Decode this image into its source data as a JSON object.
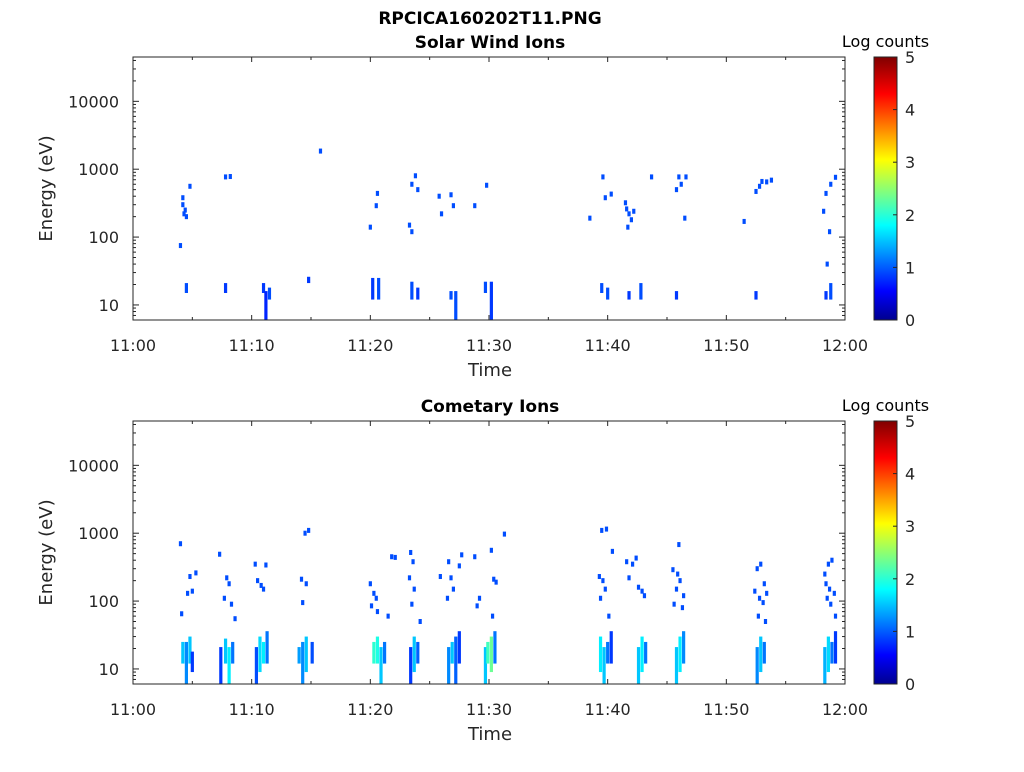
{
  "figure_title": "RPCICA160202T11.PNG",
  "colormap": "jet",
  "chart_data": [
    {
      "type": "heatmap",
      "title": "Solar Wind Ions",
      "xlabel": "Time",
      "ylabel": "Energy (eV)",
      "y_scale": "log",
      "ylim": [
        6,
        45000
      ],
      "x_ticks": [
        "11:00",
        "11:10",
        "11:20",
        "11:30",
        "11:40",
        "11:50",
        "12:00"
      ],
      "y_ticks": [
        "10",
        "100",
        "1000",
        "10000"
      ],
      "y_tick_values": [
        10,
        100,
        1000,
        10000
      ],
      "colorbar": {
        "label": "Log counts",
        "ticks": [
          "0",
          "1",
          "2",
          "3",
          "4",
          "5"
        ],
        "range": [
          0,
          5
        ]
      },
      "cells": [
        [
          4.2,
          300,
          1
        ],
        [
          4.3,
          220,
          1
        ],
        [
          4.4,
          250,
          1
        ],
        [
          4.5,
          200,
          1
        ],
        [
          4.2,
          380,
          1
        ],
        [
          4.0,
          75,
          1
        ],
        [
          4.8,
          560,
          1
        ],
        [
          7.8,
          770,
          1
        ],
        [
          8.2,
          780,
          1
        ],
        [
          15.8,
          1850,
          1
        ],
        [
          20.0,
          140,
          1
        ],
        [
          20.6,
          440,
          1
        ],
        [
          20.5,
          290,
          1
        ],
        [
          23.5,
          600,
          1
        ],
        [
          23.8,
          800,
          1
        ],
        [
          24.0,
          500,
          1
        ],
        [
          23.3,
          150,
          1
        ],
        [
          23.5,
          120,
          1
        ],
        [
          25.8,
          400,
          1
        ],
        [
          26.0,
          220,
          1
        ],
        [
          26.8,
          420,
          1
        ],
        [
          27.0,
          290,
          1
        ],
        [
          28.8,
          290,
          1
        ],
        [
          29.8,
          580,
          1
        ],
        [
          38.5,
          190,
          1
        ],
        [
          39.6,
          770,
          1
        ],
        [
          39.8,
          380,
          1
        ],
        [
          40.3,
          430,
          1
        ],
        [
          41.5,
          320,
          1
        ],
        [
          41.6,
          260,
          1
        ],
        [
          41.8,
          220,
          1
        ],
        [
          42.0,
          180,
          1
        ],
        [
          41.7,
          140,
          1
        ],
        [
          42.2,
          240,
          1
        ],
        [
          43.7,
          770,
          1
        ],
        [
          45.8,
          500,
          1
        ],
        [
          46.0,
          770,
          1
        ],
        [
          46.2,
          600,
          1
        ],
        [
          46.6,
          770,
          1
        ],
        [
          46.5,
          190,
          1
        ],
        [
          51.5,
          170,
          1
        ],
        [
          52.5,
          470,
          1
        ],
        [
          52.8,
          560,
          1
        ],
        [
          53.0,
          660,
          1
        ],
        [
          53.4,
          650,
          1
        ],
        [
          53.8,
          690,
          1
        ],
        [
          58.2,
          240,
          1
        ],
        [
          58.4,
          440,
          1
        ],
        [
          58.7,
          120,
          1
        ],
        [
          58.5,
          40,
          1
        ],
        [
          58.8,
          600,
          1
        ],
        [
          59.2,
          760,
          1
        ]
      ],
      "columns": [
        [
          4.5,
          15,
          21,
          1
        ],
        [
          7.8,
          15,
          21,
          0.9
        ],
        [
          11.0,
          15,
          21,
          0.9
        ],
        [
          11.2,
          6,
          16,
          0.8
        ],
        [
          11.5,
          12,
          18,
          1
        ],
        [
          14.8,
          21,
          26,
          0.9
        ],
        [
          20.2,
          12,
          25,
          0.9
        ],
        [
          20.7,
          12,
          25,
          1
        ],
        [
          23.5,
          12,
          22,
          1
        ],
        [
          24.0,
          12,
          18,
          0.9
        ],
        [
          26.8,
          12,
          16,
          1
        ],
        [
          27.2,
          6,
          16,
          1
        ],
        [
          29.7,
          15,
          22,
          1
        ],
        [
          30.2,
          6,
          22,
          0.9
        ],
        [
          39.5,
          15,
          21,
          1
        ],
        [
          40.0,
          12,
          18,
          1
        ],
        [
          41.8,
          12,
          16,
          0.9
        ],
        [
          42.8,
          12,
          21,
          1
        ],
        [
          45.8,
          12,
          16,
          0.9
        ],
        [
          52.5,
          12,
          16,
          0.9
        ],
        [
          58.4,
          12,
          16,
          0.9
        ],
        [
          58.8,
          12,
          21,
          1
        ]
      ]
    },
    {
      "type": "heatmap",
      "title": "Cometary Ions",
      "xlabel": "Time",
      "ylabel": "Energy (eV)",
      "y_scale": "log",
      "ylim": [
        6,
        45000
      ],
      "x_ticks": [
        "11:00",
        "11:10",
        "11:20",
        "11:30",
        "11:40",
        "11:50",
        "12:00"
      ],
      "y_ticks": [
        "10",
        "100",
        "1000",
        "10000"
      ],
      "y_tick_values": [
        10,
        100,
        1000,
        10000
      ],
      "colorbar": {
        "label": "Log counts",
        "ticks": [
          "0",
          "1",
          "2",
          "3",
          "4",
          "5"
        ],
        "range": [
          0,
          5
        ]
      },
      "cells": [
        [
          4.0,
          700,
          1
        ],
        [
          4.1,
          65,
          1
        ],
        [
          4.6,
          130,
          1
        ],
        [
          5.0,
          140,
          1
        ],
        [
          4.8,
          230,
          1
        ],
        [
          5.3,
          260,
          1
        ],
        [
          7.3,
          490,
          1
        ],
        [
          7.9,
          220,
          1
        ],
        [
          8.1,
          180,
          1
        ],
        [
          7.7,
          110,
          1
        ],
        [
          8.3,
          90,
          1
        ],
        [
          8.6,
          55,
          1
        ],
        [
          10.3,
          350,
          1
        ],
        [
          10.5,
          200,
          1
        ],
        [
          10.8,
          170,
          1
        ],
        [
          11.2,
          340,
          1
        ],
        [
          11.0,
          150,
          1
        ],
        [
          14.5,
          1000,
          1
        ],
        [
          14.8,
          1100,
          1
        ],
        [
          14.2,
          210,
          1
        ],
        [
          14.6,
          180,
          1
        ],
        [
          14.3,
          95,
          1
        ],
        [
          20.0,
          180,
          1
        ],
        [
          20.3,
          130,
          1
        ],
        [
          20.5,
          110,
          1
        ],
        [
          20.1,
          85,
          1
        ],
        [
          20.6,
          70,
          1
        ],
        [
          21.5,
          60,
          1
        ],
        [
          21.8,
          450,
          1
        ],
        [
          22.1,
          440,
          1
        ],
        [
          23.4,
          520,
          1
        ],
        [
          23.6,
          380,
          1
        ],
        [
          23.3,
          220,
          1
        ],
        [
          23.7,
          150,
          1
        ],
        [
          23.5,
          90,
          1
        ],
        [
          24.2,
          50,
          1
        ],
        [
          25.9,
          230,
          1
        ],
        [
          26.6,
          380,
          1
        ],
        [
          26.8,
          220,
          1
        ],
        [
          27.0,
          150,
          1
        ],
        [
          26.5,
          110,
          1
        ],
        [
          27.5,
          330,
          1
        ],
        [
          27.7,
          480,
          1
        ],
        [
          28.8,
          450,
          1
        ],
        [
          29.2,
          110,
          1
        ],
        [
          29.0,
          85,
          1
        ],
        [
          30.2,
          560,
          1
        ],
        [
          30.4,
          210,
          1
        ],
        [
          30.6,
          190,
          1
        ],
        [
          31.3,
          970,
          1
        ],
        [
          30.3,
          60,
          1
        ],
        [
          39.5,
          1100,
          1
        ],
        [
          39.9,
          1150,
          1
        ],
        [
          40.4,
          540,
          1
        ],
        [
          39.3,
          230,
          1
        ],
        [
          39.6,
          200,
          1
        ],
        [
          39.8,
          150,
          1
        ],
        [
          39.4,
          110,
          1
        ],
        [
          40.1,
          60,
          1
        ],
        [
          41.6,
          380,
          1
        ],
        [
          42.1,
          350,
          1
        ],
        [
          42.4,
          430,
          1
        ],
        [
          41.8,
          220,
          1
        ],
        [
          42.6,
          160,
          1
        ],
        [
          42.9,
          140,
          1
        ],
        [
          43.1,
          120,
          1
        ],
        [
          46.0,
          680,
          1
        ],
        [
          45.5,
          290,
          1
        ],
        [
          45.9,
          250,
          1
        ],
        [
          46.1,
          200,
          1
        ],
        [
          45.8,
          150,
          1
        ],
        [
          46.4,
          120,
          1
        ],
        [
          45.6,
          90,
          1
        ],
        [
          46.3,
          80,
          1
        ],
        [
          52.6,
          300,
          1
        ],
        [
          52.9,
          350,
          1
        ],
        [
          53.2,
          180,
          1
        ],
        [
          52.4,
          140,
          1
        ],
        [
          53.4,
          130,
          1
        ],
        [
          52.8,
          110,
          1
        ],
        [
          53.1,
          95,
          1
        ],
        [
          52.7,
          60,
          1
        ],
        [
          53.3,
          50,
          1
        ],
        [
          58.3,
          250,
          1
        ],
        [
          58.6,
          350,
          1
        ],
        [
          58.9,
          400,
          1
        ],
        [
          58.4,
          180,
          1
        ],
        [
          58.7,
          150,
          1
        ],
        [
          59.1,
          130,
          1
        ],
        [
          58.5,
          110,
          1
        ],
        [
          58.8,
          90,
          1
        ],
        [
          59.2,
          60,
          1
        ]
      ],
      "columns": [
        [
          4.2,
          12,
          25,
          1.6
        ],
        [
          4.5,
          6,
          25,
          1.3
        ],
        [
          4.8,
          12,
          30,
          1.6
        ],
        [
          5.0,
          9,
          18,
          0.9
        ],
        [
          7.4,
          6,
          21,
          0.9
        ],
        [
          7.8,
          12,
          28,
          1.6
        ],
        [
          8.1,
          6,
          21,
          1.8
        ],
        [
          8.4,
          12,
          25,
          1.2
        ],
        [
          10.4,
          6,
          21,
          1.0
        ],
        [
          10.7,
          9,
          30,
          1.7
        ],
        [
          11.0,
          12,
          25,
          1.8
        ],
        [
          11.3,
          12,
          36,
          1.2
        ],
        [
          14.0,
          12,
          21,
          1.4
        ],
        [
          14.3,
          6,
          25,
          1.3
        ],
        [
          14.6,
          9,
          30,
          1.6
        ],
        [
          15.1,
          12,
          25,
          1.0
        ],
        [
          20.3,
          12,
          25,
          2.1
        ],
        [
          20.6,
          12,
          30,
          2.0
        ],
        [
          20.9,
          6,
          21,
          1.6
        ],
        [
          21.2,
          12,
          25,
          1.2
        ],
        [
          23.4,
          6,
          21,
          0.9
        ],
        [
          23.7,
          9,
          30,
          1.6
        ],
        [
          24.0,
          12,
          25,
          1.1
        ],
        [
          26.6,
          6,
          21,
          1.3
        ],
        [
          26.9,
          12,
          25,
          1.6
        ],
        [
          27.2,
          6,
          30,
          1.1
        ],
        [
          27.5,
          12,
          36,
          0.9
        ],
        [
          29.7,
          6,
          21,
          1.6
        ],
        [
          29.9,
          12,
          25,
          2.2
        ],
        [
          30.2,
          9,
          30,
          2.4
        ],
        [
          30.5,
          12,
          36,
          1.2
        ],
        [
          39.4,
          9,
          30,
          1.8
        ],
        [
          39.7,
          6,
          21,
          1.6
        ],
        [
          40.0,
          12,
          25,
          1.2
        ],
        [
          40.3,
          12,
          36,
          0.9
        ],
        [
          42.6,
          6,
          21,
          1.6
        ],
        [
          42.9,
          9,
          30,
          1.8
        ],
        [
          43.2,
          12,
          25,
          1.2
        ],
        [
          45.8,
          6,
          21,
          1.6
        ],
        [
          46.1,
          9,
          30,
          1.8
        ],
        [
          46.4,
          12,
          36,
          1.3
        ],
        [
          52.6,
          6,
          21,
          1.3
        ],
        [
          52.9,
          9,
          30,
          1.6
        ],
        [
          53.2,
          12,
          25,
          1.2
        ],
        [
          58.3,
          6,
          21,
          1.5
        ],
        [
          58.6,
          9,
          30,
          1.7
        ],
        [
          58.9,
          12,
          25,
          1.2
        ],
        [
          59.2,
          12,
          36,
          0.9
        ]
      ]
    }
  ]
}
